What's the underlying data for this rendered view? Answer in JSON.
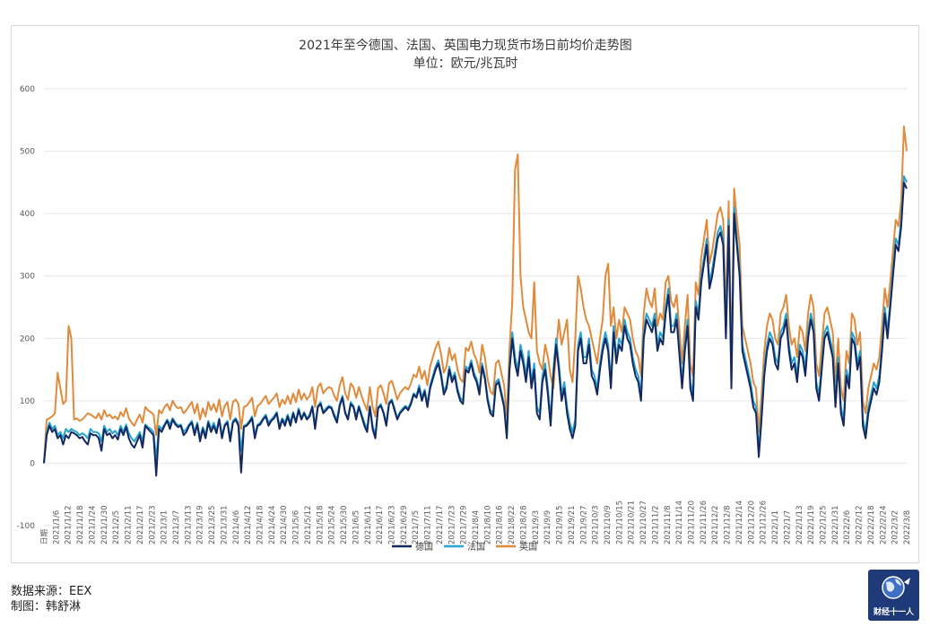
{
  "chart_data": {
    "type": "line",
    "title": "2021年至今德国、法国、英国电力现货市场日前均价走势图",
    "subtitle": "单位：欧元/兆瓦时",
    "ylim": [
      -100,
      600
    ],
    "yticks": [
      -100,
      0,
      100,
      200,
      300,
      400,
      500,
      600
    ],
    "grid": true,
    "legend_position": "bottom",
    "x_labels": [
      "日期",
      "2021/1/6",
      "2021/1/12",
      "2021/1/18",
      "2021/1/24",
      "2021/1/30",
      "2021/2/5",
      "2021/2/11",
      "2021/2/17",
      "2021/2/23",
      "2021/3/1",
      "2021/3/7",
      "2021/3/13",
      "2021/3/19",
      "2021/3/25",
      "2021/3/31",
      "2021/4/6",
      "2021/4/12",
      "2021/4/18",
      "2021/4/24",
      "2021/4/30",
      "2021/5/6",
      "2021/5/12",
      "2021/5/18",
      "2021/5/24",
      "2021/5/30",
      "2021/6/5",
      "2021/6/11",
      "2021/6/17",
      "2021/6/23",
      "2021/6/29",
      "2021/7/5",
      "2021/7/11",
      "2021/7/17",
      "2021/7/23",
      "2021/7/29",
      "2021/8/4",
      "2021/8/10",
      "2021/8/16",
      "2021/8/22",
      "2021/8/28",
      "2021/9/3",
      "2021/9/9",
      "2021/9/15",
      "2021/9/21",
      "2021/9/27",
      "2021/10/3",
      "2021/10/9",
      "2021/10/15",
      "2021/10/21",
      "2021/10/27",
      "2021/11/2",
      "2021/11/8",
      "2021/11/14",
      "2021/11/20",
      "2021/11/26",
      "2021/12/2",
      "2021/12/8",
      "2021/12/14",
      "2021/12/20",
      "2021/12/26",
      "2022/1/1",
      "2022/1/7",
      "2022/1/13",
      "2022/1/19",
      "2022/1/25",
      "2022/1/31",
      "2022/2/6",
      "2022/2/12",
      "2022/2/18",
      "2022/2/24",
      "2022/3/2",
      "2022/3/8"
    ],
    "series": [
      {
        "name": "德国",
        "color": "#14285f",
        "values": [
          0,
          45,
          60,
          50,
          55,
          40,
          45,
          30,
          45,
          40,
          50,
          48,
          45,
          40,
          42,
          35,
          30,
          48,
          45,
          45,
          40,
          20,
          55,
          45,
          48,
          40,
          45,
          38,
          55,
          45,
          58,
          40,
          30,
          25,
          35,
          45,
          25,
          60,
          55,
          50,
          45,
          -20,
          55,
          50,
          60,
          68,
          55,
          70,
          62,
          58,
          60,
          45,
          50,
          60,
          65,
          45,
          62,
          35,
          55,
          40,
          65,
          50,
          60,
          48,
          70,
          40,
          60,
          65,
          35,
          65,
          70,
          60,
          -15,
          58,
          60,
          65,
          72,
          40,
          60,
          62,
          70,
          75,
          60,
          68,
          72,
          80,
          55,
          70,
          60,
          75,
          60,
          80,
          65,
          85,
          70,
          80,
          70,
          75,
          90,
          55,
          90,
          95,
          80,
          85,
          90,
          88,
          75,
          65,
          92,
          105,
          80,
          70,
          95,
          90,
          70,
          90,
          75,
          60,
          50,
          90,
          55,
          40,
          88,
          92,
          80,
          60,
          95,
          100,
          85,
          70,
          80,
          85,
          90,
          85,
          95,
          110,
          105,
          120,
          100,
          115,
          90,
          120,
          135,
          150,
          160,
          140,
          110,
          120,
          150,
          130,
          140,
          115,
          100,
          95,
          150,
          145,
          160,
          140,
          130,
          110,
          155,
          135,
          100,
          80,
          75,
          125,
          130,
          110,
          90,
          40,
          150,
          200,
          160,
          140,
          180,
          160,
          130,
          170,
          120,
          150,
          80,
          70,
          130,
          150,
          110,
          60,
          140,
          190,
          150,
          100,
          120,
          80,
          55,
          40,
          60,
          180,
          200,
          160,
          160,
          190,
          140,
          130,
          110,
          150,
          180,
          200,
          180,
          120,
          210,
          160,
          190,
          180,
          220,
          200,
          190,
          160,
          140,
          130,
          100,
          200,
          230,
          220,
          210,
          230,
          180,
          200,
          190,
          240,
          270,
          210,
          210,
          230,
          175,
          120,
          180,
          220,
          120,
          100,
          250,
          230,
          290,
          320,
          350,
          280,
          300,
          330,
          360,
          370,
          350,
          200,
          380,
          120,
          400,
          350,
          300,
          180,
          160,
          140,
          120,
          90,
          80,
          10,
          70,
          140,
          180,
          200,
          190,
          160,
          150,
          200,
          210,
          230,
          180,
          150,
          160,
          130,
          180,
          170,
          140,
          200,
          230,
          210,
          120,
          100,
          150,
          200,
          210,
          190,
          170,
          90,
          160,
          80,
          60,
          140,
          120,
          200,
          190,
          150,
          170,
          60,
          40,
          80,
          100,
          120,
          110,
          130,
          180,
          240,
          200,
          250,
          300,
          350,
          340,
          380,
          450,
          440
        ]
      },
      {
        "name": "法国",
        "color": "#27a3d2",
        "values": [
          0,
          50,
          65,
          55,
          60,
          45,
          50,
          40,
          55,
          50,
          55,
          52,
          50,
          45,
          48,
          45,
          40,
          55,
          50,
          50,
          48,
          35,
          60,
          50,
          55,
          48,
          52,
          45,
          60,
          50,
          62,
          48,
          40,
          35,
          42,
          50,
          35,
          62,
          58,
          55,
          50,
          5,
          60,
          55,
          62,
          70,
          62,
          72,
          65,
          60,
          62,
          50,
          55,
          62,
          68,
          50,
          65,
          40,
          58,
          45,
          68,
          55,
          65,
          52,
          72,
          45,
          62,
          68,
          40,
          68,
          72,
          65,
          20,
          60,
          62,
          68,
          75,
          45,
          62,
          65,
          72,
          78,
          65,
          70,
          75,
          82,
          60,
          72,
          65,
          78,
          65,
          82,
          68,
          88,
          72,
          82,
          72,
          78,
          92,
          60,
          92,
          98,
          82,
          88,
          92,
          90,
          78,
          70,
          95,
          108,
          82,
          72,
          98,
          92,
          75,
          92,
          78,
          65,
          55,
          92,
          60,
          45,
          90,
          95,
          82,
          65,
          98,
          102,
          88,
          72,
          82,
          88,
          92,
          88,
          98,
          112,
          108,
          125,
          105,
          118,
          95,
          125,
          140,
          155,
          165,
          145,
          115,
          125,
          155,
          135,
          145,
          120,
          105,
          100,
          155,
          150,
          165,
          145,
          135,
          115,
          160,
          140,
          105,
          85,
          80,
          130,
          135,
          115,
          95,
          45,
          155,
          210,
          170,
          150,
          190,
          170,
          140,
          180,
          130,
          160,
          90,
          80,
          140,
          160,
          120,
          70,
          150,
          200,
          160,
          110,
          130,
          90,
          65,
          50,
          70,
          190,
          210,
          170,
          170,
          200,
          150,
          140,
          120,
          160,
          190,
          210,
          190,
          130,
          220,
          170,
          200,
          190,
          230,
          210,
          200,
          170,
          150,
          140,
          110,
          210,
          240,
          230,
          220,
          240,
          190,
          210,
          200,
          250,
          280,
          220,
          220,
          240,
          185,
          130,
          190,
          230,
          130,
          110,
          260,
          240,
          300,
          330,
          360,
          290,
          310,
          340,
          370,
          380,
          360,
          210,
          390,
          130,
          410,
          360,
          310,
          190,
          170,
          150,
          130,
          100,
          90,
          20,
          80,
          150,
          190,
          210,
          200,
          170,
          160,
          210,
          220,
          240,
          190,
          160,
          170,
          140,
          190,
          180,
          150,
          210,
          240,
          220,
          130,
          110,
          160,
          210,
          220,
          200,
          180,
          100,
          170,
          90,
          70,
          150,
          130,
          210,
          200,
          160,
          180,
          70,
          50,
          90,
          110,
          130,
          120,
          140,
          190,
          250,
          210,
          260,
          310,
          360,
          350,
          390,
          460,
          450
        ]
      },
      {
        "name": "英国",
        "color": "#e08a3c",
        "values": [
          0,
          70,
          72,
          75,
          80,
          145,
          120,
          95,
          100,
          220,
          200,
          70,
          72,
          68,
          70,
          75,
          80,
          78,
          75,
          72,
          80,
          70,
          85,
          75,
          78,
          72,
          75,
          70,
          82,
          75,
          88,
          72,
          65,
          60,
          70,
          78,
          65,
          90,
          85,
          82,
          78,
          45,
          85,
          80,
          90,
          95,
          85,
          100,
          92,
          88,
          90,
          80,
          85,
          92,
          98,
          80,
          95,
          70,
          88,
          75,
          98,
          85,
          95,
          82,
          102,
          75,
          92,
          98,
          70,
          98,
          102,
          95,
          55,
          90,
          92,
          98,
          105,
          75,
          92,
          95,
          102,
          108,
          95,
          100,
          105,
          112,
          90,
          102,
          95,
          108,
          95,
          112,
          98,
          118,
          102,
          112,
          102,
          108,
          122,
          90,
          122,
          128,
          112,
          118,
          122,
          120,
          108,
          100,
          125,
          138,
          112,
          102,
          128,
          122,
          105,
          122,
          108,
          95,
          85,
          122,
          90,
          75,
          120,
          125,
          112,
          95,
          128,
          132,
          118,
          102,
          112,
          118,
          122,
          118,
          128,
          142,
          138,
          155,
          135,
          148,
          125,
          155,
          170,
          185,
          195,
          175,
          145,
          155,
          185,
          165,
          175,
          150,
          135,
          130,
          185,
          180,
          195,
          175,
          165,
          145,
          190,
          170,
          135,
          115,
          110,
          160,
          165,
          145,
          125,
          75,
          185,
          260,
          470,
          495,
          300,
          250,
          230,
          210,
          200,
          290,
          180,
          160,
          150,
          190,
          170,
          140,
          120,
          180,
          230,
          190,
          210,
          230,
          150,
          130,
          200,
          300,
          280,
          250,
          230,
          220,
          200,
          180,
          160,
          200,
          230,
          300,
          320,
          220,
          250,
          200,
          230,
          210,
          250,
          240,
          230,
          200,
          180,
          170,
          140,
          240,
          280,
          260,
          250,
          280,
          220,
          240,
          230,
          290,
          300,
          260,
          250,
          270,
          215,
          160,
          220,
          270,
          160,
          140,
          290,
          270,
          330,
          360,
          390,
          320,
          340,
          370,
          400,
          410,
          390,
          240,
          420,
          160,
          440,
          390,
          350,
          220,
          200,
          180,
          160,
          130,
          120,
          50,
          110,
          180,
          220,
          240,
          230,
          200,
          190,
          240,
          250,
          270,
          220,
          190,
          200,
          170,
          220,
          210,
          180,
          240,
          270,
          250,
          160,
          140,
          190,
          240,
          250,
          230,
          210,
          130,
          200,
          120,
          100,
          180,
          160,
          240,
          230,
          190,
          210,
          100,
          80,
          120,
          140,
          160,
          150,
          170,
          220,
          280,
          250,
          290,
          340,
          390,
          380,
          420,
          540,
          500
        ]
      }
    ]
  },
  "footer": {
    "source": "数据来源：EEX",
    "author": "制图：韩舒淋"
  },
  "logo": {
    "text": "财经十一人"
  }
}
